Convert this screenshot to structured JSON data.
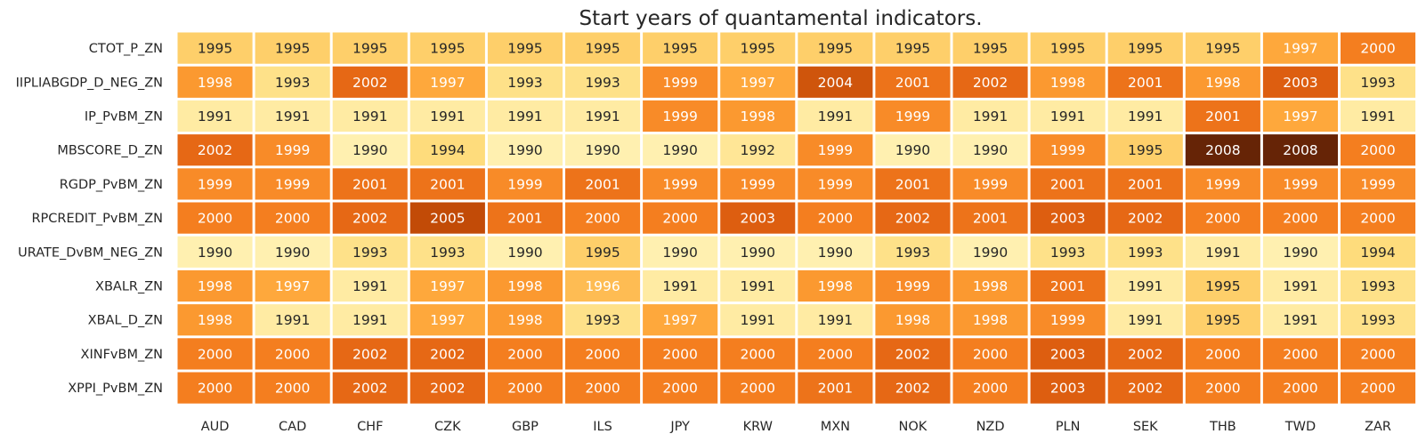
{
  "chart_data": {
    "type": "heatmap",
    "title": "Start years of quantamental indicators.",
    "xlabel": "",
    "ylabel": "",
    "x_categories": [
      "AUD",
      "CAD",
      "CHF",
      "CZK",
      "GBP",
      "ILS",
      "JPY",
      "KRW",
      "MXN",
      "NOK",
      "NZD",
      "PLN",
      "SEK",
      "THB",
      "TWD",
      "ZAR"
    ],
    "y_categories": [
      "CTOT_P_ZN",
      "IIPLIABGDP_D_NEG_ZN",
      "IP_PvBM_ZN",
      "MBSCORE_D_ZN",
      "RGDP_PvBM_ZN",
      "RPCREDIT_PvBM_ZN",
      "URATE_DvBM_NEG_ZN",
      "XBALR_ZN",
      "XBAL_D_ZN",
      "XINFvBM_ZN",
      "XPPI_PvBM_ZN"
    ],
    "values": [
      [
        1995,
        1995,
        1995,
        1995,
        1995,
        1995,
        1995,
        1995,
        1995,
        1995,
        1995,
        1995,
        1995,
        1995,
        1997,
        2000
      ],
      [
        1998,
        1993,
        2002,
        1997,
        1993,
        1993,
        1999,
        1997,
        2004,
        2001,
        2002,
        1998,
        2001,
        1998,
        2003,
        1993
      ],
      [
        1991,
        1991,
        1991,
        1991,
        1991,
        1991,
        1999,
        1998,
        1991,
        1999,
        1991,
        1991,
        1991,
        2001,
        1997,
        1991
      ],
      [
        2002,
        1999,
        1990,
        1994,
        1990,
        1990,
        1990,
        1992,
        1999,
        1990,
        1990,
        1999,
        1995,
        2008,
        2008,
        2000
      ],
      [
        1999,
        1999,
        2001,
        2001,
        1999,
        2001,
        1999,
        1999,
        1999,
        2001,
        1999,
        2001,
        2001,
        1999,
        1999,
        1999
      ],
      [
        2000,
        2000,
        2002,
        2005,
        2001,
        2000,
        2000,
        2003,
        2000,
        2002,
        2001,
        2003,
        2002,
        2000,
        2000,
        2000
      ],
      [
        1990,
        1990,
        1993,
        1993,
        1990,
        1995,
        1990,
        1990,
        1990,
        1993,
        1990,
        1993,
        1993,
        1991,
        1990,
        1994
      ],
      [
        1998,
        1997,
        1991,
        1997,
        1998,
        1996,
        1991,
        1991,
        1998,
        1999,
        1998,
        2001,
        1991,
        1995,
        1991,
        1993
      ],
      [
        1998,
        1991,
        1991,
        1997,
        1998,
        1993,
        1997,
        1991,
        1991,
        1998,
        1998,
        1999,
        1991,
        1995,
        1991,
        1993
      ],
      [
        2000,
        2000,
        2002,
        2002,
        2000,
        2000,
        2000,
        2000,
        2000,
        2002,
        2000,
        2003,
        2002,
        2000,
        2000,
        2000
      ],
      [
        2000,
        2000,
        2002,
        2002,
        2000,
        2000,
        2000,
        2000,
        2001,
        2002,
        2000,
        2003,
        2002,
        2000,
        2000,
        2000
      ]
    ],
    "colormap": "YlOrBr",
    "vmin": 1990,
    "vmax": 2008,
    "grid": false,
    "legend": "none"
  }
}
